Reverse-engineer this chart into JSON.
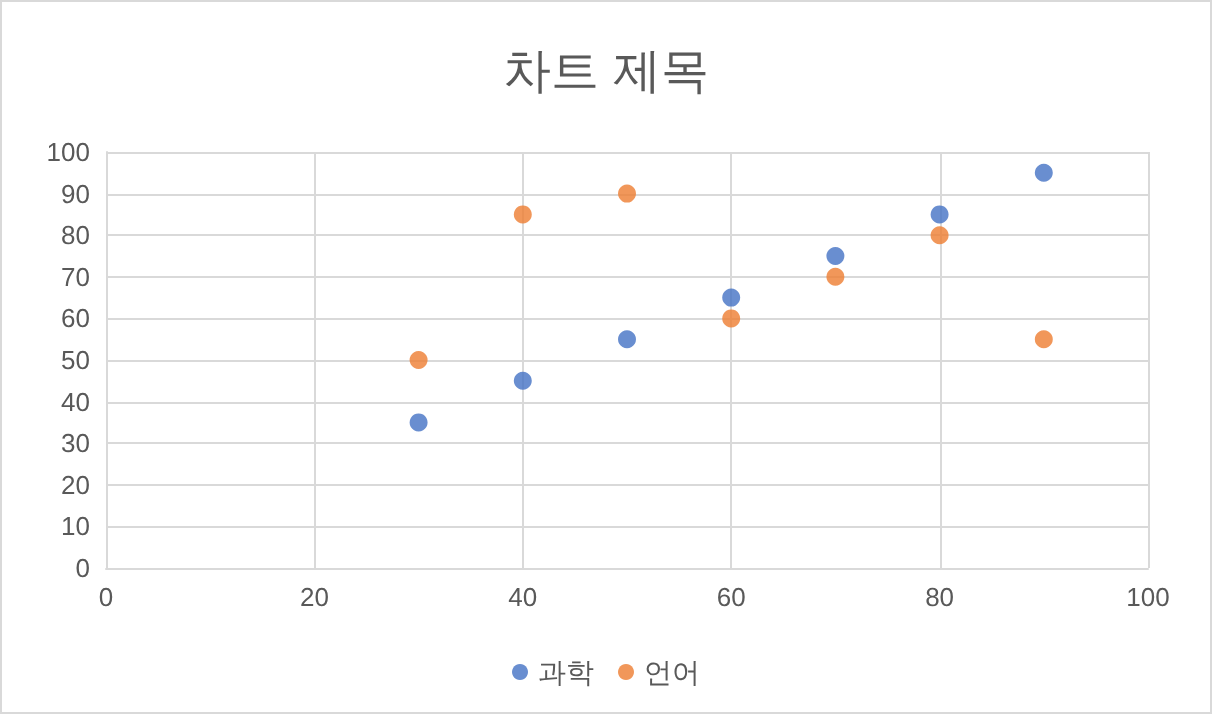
{
  "chart_data": {
    "type": "scatter",
    "title": "차트 제목",
    "x": [
      30,
      40,
      50,
      60,
      70,
      80,
      90
    ],
    "series": [
      {
        "name": "과학",
        "color": "#4472c4",
        "values": [
          35,
          45,
          55,
          65,
          75,
          85,
          95
        ]
      },
      {
        "name": "언어",
        "color": "#ed7d31",
        "values": [
          50,
          85,
          90,
          60,
          70,
          80,
          55
        ]
      }
    ],
    "xlim": [
      0,
      100
    ],
    "xticks": [
      0,
      20,
      40,
      60,
      80,
      100
    ],
    "ylim": [
      0,
      100
    ],
    "yticks": [
      0,
      10,
      20,
      30,
      40,
      50,
      60,
      70,
      80,
      90,
      100
    ],
    "grid": true,
    "legend": "bottom",
    "marker": "circle"
  }
}
